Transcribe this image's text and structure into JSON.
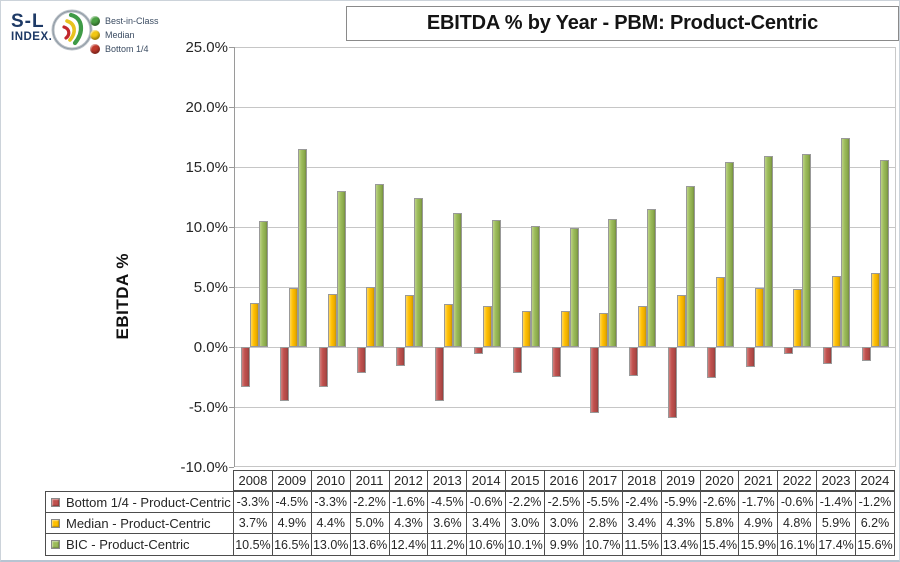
{
  "logo": {
    "line1": "S-L",
    "line2": "INDEX.",
    "tm": "TM"
  },
  "legend": {
    "position": "top-left-outside",
    "items": [
      {
        "label": "Best-in-Class",
        "color": "#4ba043"
      },
      {
        "label": "Median",
        "color": "#f2c713"
      },
      {
        "label": "Bottom 1/4",
        "color": "#c0392b"
      }
    ]
  },
  "title": "EBITDA % by Year - PBM: Product-Centric",
  "chart_data": {
    "type": "bar",
    "title": "EBITDA % by Year - PBM: Product-Centric",
    "xlabel": "",
    "ylabel": "EBITDA %",
    "ylim": [
      -10,
      25
    ],
    "ytick_step": 5,
    "ytick_labels": [
      "25.0%",
      "20.0%",
      "15.0%",
      "10.0%",
      "5.0%",
      "0.0%",
      "-5.0%",
      "-10.0%"
    ],
    "grid": true,
    "value_format": "percent-one-decimal",
    "categories": [
      "2008",
      "2009",
      "2010",
      "2011",
      "2012",
      "2013",
      "2014",
      "2015",
      "2016",
      "2017",
      "2018",
      "2019",
      "2020",
      "2021",
      "2022",
      "2023",
      "2024"
    ],
    "series": [
      {
        "name": "Bottom 1/4 - Product-Centric",
        "legend": "Bottom 1/4",
        "color": "#C0504D",
        "values": [
          -3.3,
          -4.5,
          -3.3,
          -2.2,
          -1.6,
          -4.5,
          -0.6,
          -2.2,
          -2.5,
          -5.5,
          -2.4,
          -5.9,
          -2.6,
          -1.7,
          -0.6,
          -1.4,
          -1.2
        ]
      },
      {
        "name": "Median - Product-Centric",
        "legend": "Median",
        "color": "#FFC000",
        "values": [
          3.7,
          4.9,
          4.4,
          5.0,
          4.3,
          3.6,
          3.4,
          3.0,
          3.0,
          2.8,
          3.4,
          4.3,
          5.8,
          4.9,
          4.8,
          5.9,
          6.2
        ]
      },
      {
        "name": "BIC - Product-Centric",
        "legend": "Best-in-Class",
        "color": "#9BBB59",
        "values": [
          10.5,
          16.5,
          13.0,
          13.6,
          12.4,
          11.2,
          10.6,
          10.1,
          9.9,
          10.7,
          11.5,
          13.4,
          15.4,
          15.9,
          16.1,
          17.4,
          15.6
        ]
      }
    ]
  }
}
